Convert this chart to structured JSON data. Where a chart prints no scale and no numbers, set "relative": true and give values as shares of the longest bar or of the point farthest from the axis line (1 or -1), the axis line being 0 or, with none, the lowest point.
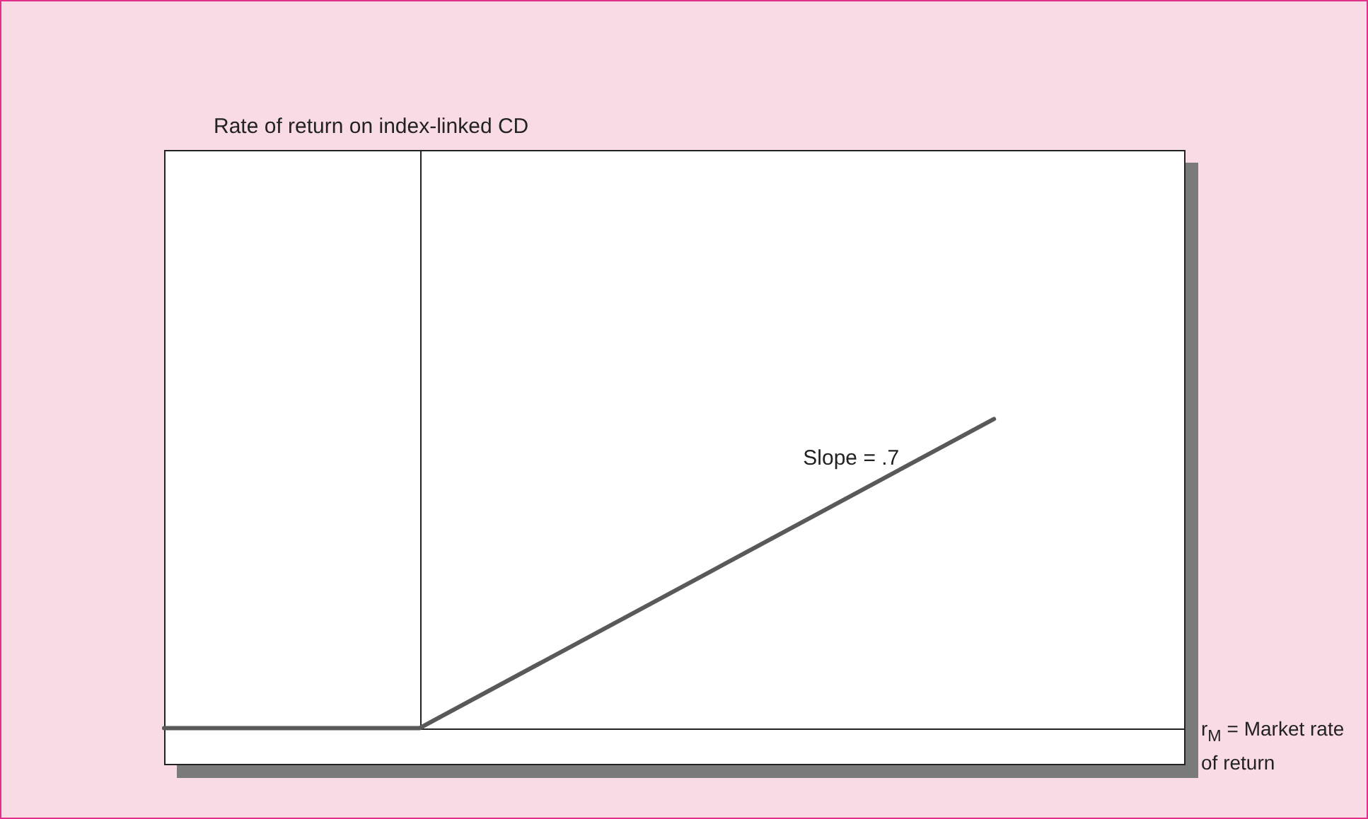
{
  "chart_data": {
    "type": "line",
    "relative": true,
    "xlabel": "r$_{M}$ = Market rate of return",
    "annotations": [
      "Rate of return on index-linked CD",
      "Slope = .7"
    ],
    "categories": [
      null,
      null,
      null,
      null,
      null,
      null,
      null,
      null,
      null,
      null,
      null,
      null,
      null,
      null,
      null,
      null,
      null
    ],
    "series": [
      {
        "color": "#595959",
        "values": [
          0,
          null,
          null,
          null,
          0,
          null,
          null,
          null,
          null,
          null,
          null,
          null,
          null,
          1,
          null,
          null,
          null
        ]
      }
    ],
    "legend": false,
    "marker": "none",
    "line_style": "solid"
  }
}
